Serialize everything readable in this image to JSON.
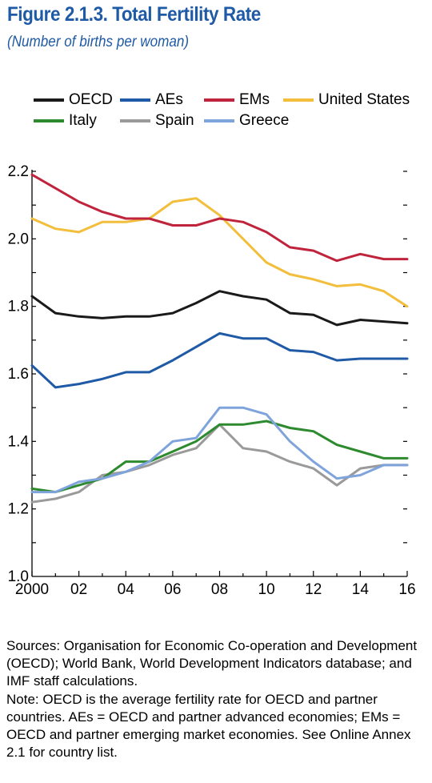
{
  "header": {
    "title": "Figure 2.1.3.  Total Fertility Rate",
    "subtitle": "(Number of births per woman)"
  },
  "notes": {
    "sources": "Sources: Organisation for Economic Co-operation and Development (OECD); World Bank, World Development Indicators database; and IMF staff calculations.",
    "note": "Note: OECD is the average fertility rate for OECD and partner countries. AEs = OECD and partner advanced economies; EMs = OECD and partner emerging market economies. See Online Annex 2.1 for country list."
  },
  "chart_data": {
    "type": "line",
    "title": "Total Fertility Rate",
    "ylabel": "",
    "xlabel": "",
    "ylim": [
      1.0,
      2.2
    ],
    "xlim": [
      2000,
      2016
    ],
    "yticks": [
      "1.0",
      "1.2",
      "1.4",
      "1.6",
      "1.8",
      "2.0",
      "2.2"
    ],
    "xticks": [
      "2000",
      "02",
      "04",
      "06",
      "08",
      "10",
      "12",
      "14",
      "16"
    ],
    "legend_placement": "top",
    "x": [
      2000,
      2001,
      2002,
      2003,
      2004,
      2005,
      2006,
      2007,
      2008,
      2009,
      2010,
      2011,
      2012,
      2013,
      2014,
      2015,
      2016
    ],
    "series": [
      {
        "name": "OECD",
        "color": "#1a1a1a",
        "values": [
          1.83,
          1.78,
          1.77,
          1.765,
          1.77,
          1.77,
          1.78,
          1.81,
          1.845,
          1.83,
          1.82,
          1.78,
          1.775,
          1.745,
          1.76,
          1.755,
          1.75
        ]
      },
      {
        "name": "AEs",
        "color": "#1f5aa6",
        "values": [
          1.625,
          1.56,
          1.57,
          1.585,
          1.605,
          1.605,
          1.64,
          1.68,
          1.72,
          1.705,
          1.705,
          1.67,
          1.665,
          1.64,
          1.645,
          1.645,
          1.645
        ]
      },
      {
        "name": "EMs",
        "color": "#c0243c",
        "values": [
          2.19,
          2.15,
          2.11,
          2.08,
          2.06,
          2.06,
          2.04,
          2.04,
          2.06,
          2.05,
          2.02,
          1.975,
          1.965,
          1.935,
          1.955,
          1.94,
          1.94
        ]
      },
      {
        "name": "United States",
        "color": "#f2be3c",
        "values": [
          2.06,
          2.03,
          2.02,
          2.05,
          2.05,
          2.06,
          2.11,
          2.12,
          2.07,
          2.0,
          1.93,
          1.895,
          1.88,
          1.86,
          1.865,
          1.845,
          1.8
        ]
      },
      {
        "name": "Italy",
        "color": "#2e8a2e",
        "values": [
          1.26,
          1.25,
          1.27,
          1.29,
          1.34,
          1.34,
          1.37,
          1.4,
          1.45,
          1.45,
          1.46,
          1.44,
          1.43,
          1.39,
          1.37,
          1.35,
          1.35
        ]
      },
      {
        "name": "Spain",
        "color": "#9a9a9a",
        "values": [
          1.22,
          1.23,
          1.25,
          1.3,
          1.31,
          1.33,
          1.36,
          1.38,
          1.45,
          1.38,
          1.37,
          1.34,
          1.32,
          1.27,
          1.32,
          1.33,
          1.33
        ]
      },
      {
        "name": "Greece",
        "color": "#7fa3db",
        "values": [
          1.25,
          1.25,
          1.28,
          1.29,
          1.31,
          1.34,
          1.4,
          1.41,
          1.5,
          1.5,
          1.48,
          1.4,
          1.34,
          1.29,
          1.3,
          1.33,
          1.33
        ]
      }
    ]
  }
}
